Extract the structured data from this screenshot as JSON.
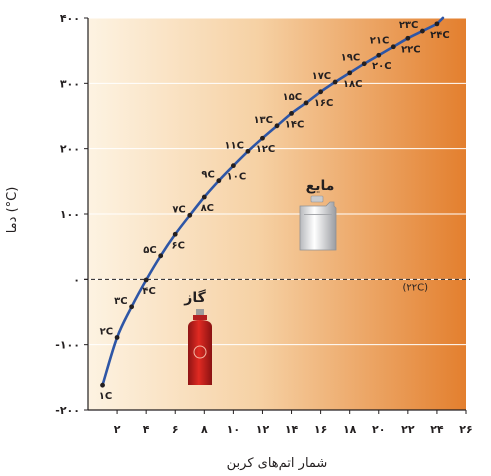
{
  "chart_data": {
    "type": "line",
    "xlabel": "شمار اتم‌های کربن",
    "ylabel": "دما (°C)",
    "xlim": [
      0,
      26
    ],
    "ylim": [
      -200,
      400
    ],
    "x_ticks": [
      2,
      4,
      6,
      8,
      10,
      12,
      14,
      16,
      18,
      20,
      22,
      24,
      26
    ],
    "x_tick_labels": [
      "۲",
      "۴",
      "۶",
      "۸",
      "۱۰",
      "۱۲",
      "۱۴",
      "۱۶",
      "۱۸",
      "۲۰",
      "۲۲",
      "۲۴",
      "۲۶"
    ],
    "y_ticks": [
      -200,
      -100,
      0,
      100,
      200,
      300,
      400
    ],
    "y_tick_labels": [
      "-۲۰۰",
      "-۱۰۰",
      "۰",
      "۱۰۰",
      "۲۰۰",
      "۳۰۰",
      "۴۰۰"
    ],
    "grid": true,
    "series": [
      {
        "x": [
          1,
          2,
          3,
          4,
          5,
          6,
          7,
          8,
          9,
          10,
          11,
          12,
          13,
          14,
          15,
          16,
          17,
          18,
          19,
          20,
          21,
          22,
          23,
          24
        ],
        "y": [
          -162,
          -89,
          -42,
          -1,
          36,
          69,
          98,
          126,
          151,
          174,
          196,
          216,
          235,
          254,
          270,
          287,
          302,
          316,
          330,
          343,
          356,
          369,
          380,
          391
        ],
        "labels": [
          "۱C",
          "۲C",
          "۳C",
          "۴C",
          "۵C",
          "۶C",
          "۷C",
          "۸C",
          "۹C",
          "۱۰C",
          "۱۱C",
          "۱۲C",
          "۱۳C",
          "۱۴C",
          "۱۵C",
          "۱۶C",
          "۱۷C",
          "۱۸C",
          "۱۹C",
          "۲۰C",
          "۲۱C",
          "۲۲C",
          "۲۳C",
          "۲۴C"
        ],
        "label_side": [
          "below",
          "left",
          "left",
          "below",
          "left",
          "below",
          "left",
          "below",
          "left",
          "below",
          "left",
          "below",
          "left",
          "below",
          "left",
          "below",
          "left",
          "below",
          "left",
          "below",
          "left",
          "below",
          "left",
          "below"
        ]
      }
    ],
    "reference_line": {
      "y": 0,
      "style": "dashed",
      "label": "(۲۲C)"
    },
    "regions": {
      "gas": "گاز",
      "liquid": "مایع"
    },
    "colors": {
      "bg_left": "#fdf3e2",
      "bg_right": "#e37f2e",
      "line": "#2e56a6",
      "point": "#231f20"
    }
  }
}
